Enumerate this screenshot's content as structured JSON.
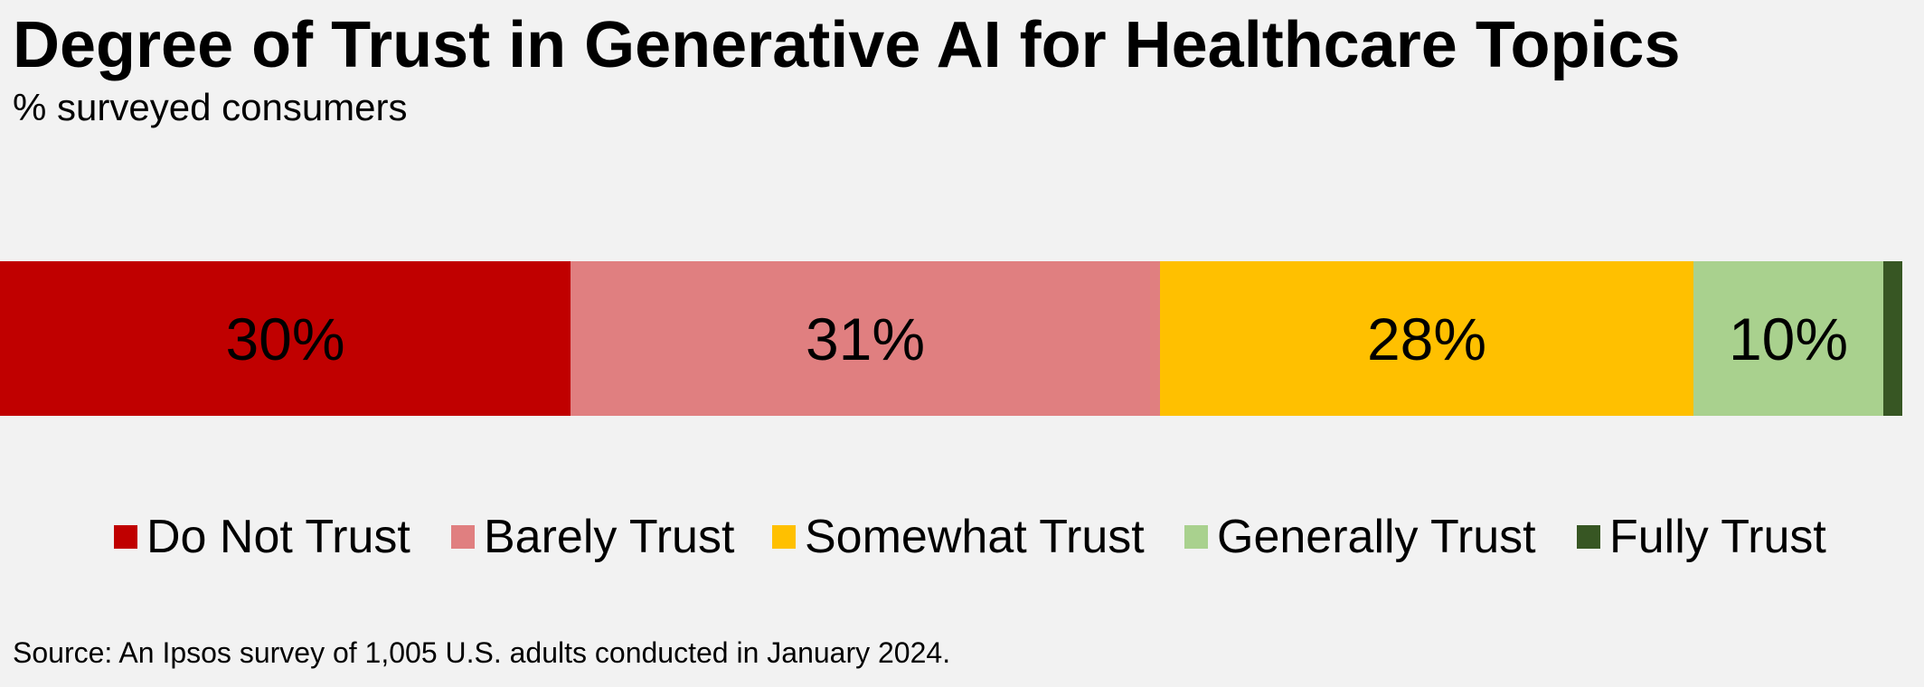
{
  "title": "Degree of Trust in Generative AI for Healthcare Topics",
  "subtitle": "% surveyed consumers",
  "source": "Source: An Ipsos survey of 1,005 U.S. adults conducted in January 2024.",
  "chart_data": {
    "type": "bar",
    "orientation": "horizontal",
    "stacked": true,
    "normalized": true,
    "title": "Degree of Trust in Generative AI for Healthcare Topics",
    "subtitle": "% surveyed consumers",
    "xlim": [
      0,
      100
    ],
    "grid": false,
    "legend_position": "bottom",
    "series": [
      {
        "name": "Do Not Trust",
        "value": 30,
        "label": "30%",
        "color": "#c00000"
      },
      {
        "name": "Barely Trust",
        "value": 31,
        "label": "31%",
        "color": "#e07f80"
      },
      {
        "name": "Somewhat Trust",
        "value": 28,
        "label": "28%",
        "color": "#ffc000"
      },
      {
        "name": "Generally Trust",
        "value": 10,
        "label": "10%",
        "color": "#a9d18e"
      },
      {
        "name": "Fully Trust",
        "value": 1,
        "label": "",
        "color": "#375623"
      }
    ]
  }
}
